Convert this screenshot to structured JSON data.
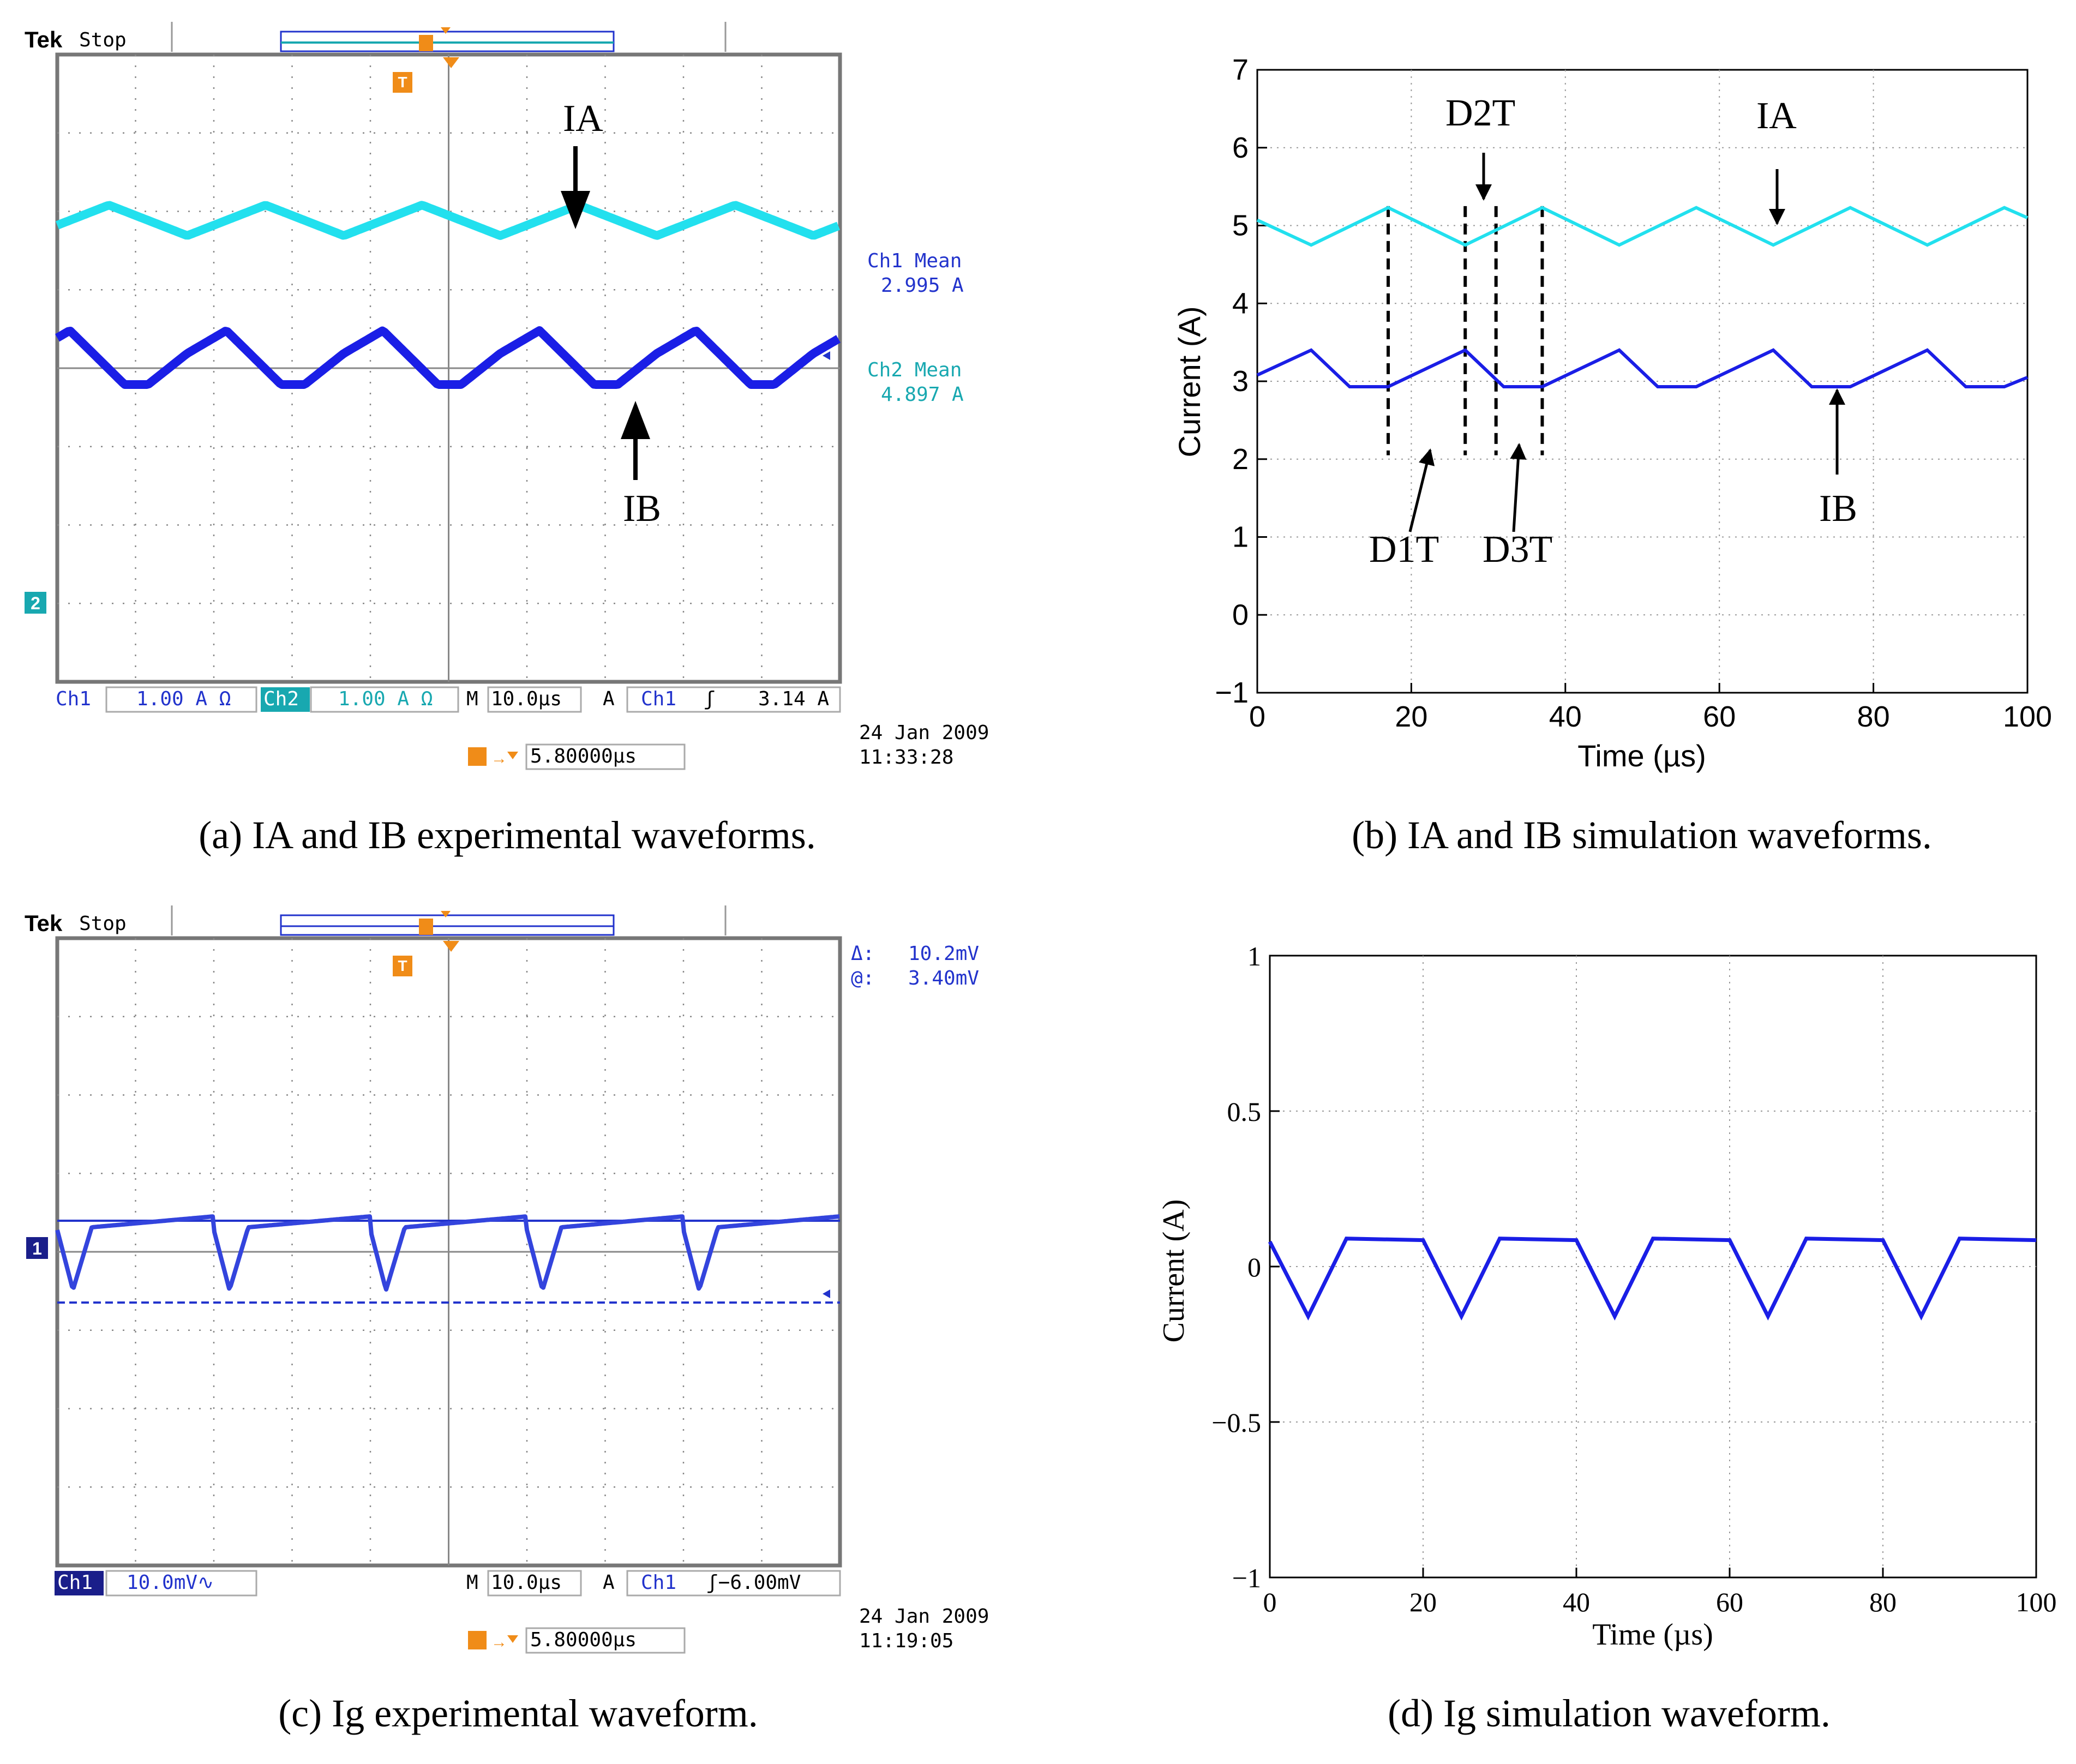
{
  "colors": {
    "cyan": "#22e0ee",
    "blue": "#1a1ee6",
    "scope_blue": "#2233cc",
    "scope_teal": "#18a8b0",
    "orange": "#f08c18",
    "grid": "#888888"
  },
  "panel_a": {
    "brand": "Tek",
    "status": "Stop",
    "ch1_mean_title": "Ch1 Mean",
    "ch1_mean_value": "2.995 A",
    "ch2_mean_title": "Ch2 Mean",
    "ch2_mean_value": "4.897 A",
    "label_ia": "IA",
    "label_ib": "IB",
    "ch1_name": "Ch1",
    "ch1_scale": "1.00 A Ω",
    "ch2_name": "Ch2",
    "ch2_scale": "1.00 A Ω",
    "time_prefix": "M",
    "time_div": "10.0µs",
    "trig_prefix": "A",
    "trig_ch": "Ch1",
    "trig_slope": "ʃ",
    "trig_level": "3.14 A",
    "date": "24 Jan  2009",
    "time": "11:33:28",
    "trig_pos": "5.80000µs",
    "ch_marker": "2",
    "caption": "(a)  IA and IB experimental waveforms."
  },
  "panel_c": {
    "brand": "Tek",
    "status": "Stop",
    "delta_label": "Δ:",
    "delta_value": "10.2mV",
    "at_label": "@:",
    "at_value": "3.40mV",
    "ch1_name": "Ch1",
    "ch1_scale": "10.0mV∿",
    "time_prefix": "M",
    "time_div": "10.0µs",
    "trig_prefix": "A",
    "trig_ch": "Ch1",
    "trig_level": "ʃ−6.00mV",
    "date": "24 Jan  2009",
    "time": "11:19:05",
    "trig_pos": "5.80000µs",
    "ch_marker": "1",
    "caption": "(c)  Ig experimental waveform."
  },
  "chart_data": [
    {
      "id": "b",
      "type": "line",
      "title": "",
      "xlabel": "Time (µs)",
      "ylabel": "Current (A)",
      "xlim": [
        0,
        100
      ],
      "ylim": [
        -1,
        7
      ],
      "xticks": [
        0,
        20,
        40,
        60,
        80,
        100
      ],
      "yticks": [
        -1,
        0,
        1,
        2,
        3,
        4,
        5,
        6,
        7
      ],
      "grid": true,
      "series": [
        {
          "name": "IA",
          "color": "#22e0ee",
          "x": [
            0,
            7,
            17,
            27,
            37,
            47,
            57,
            67,
            77,
            87,
            97,
            100
          ],
          "y": [
            5.07,
            4.75,
            5.23,
            4.75,
            5.23,
            4.75,
            5.23,
            4.75,
            5.23,
            4.75,
            5.23,
            5.1
          ]
        },
        {
          "name": "IB",
          "color": "#1a1ee6",
          "x": [
            0,
            7,
            12,
            17,
            27,
            32,
            37,
            47,
            52,
            57,
            67,
            72,
            77,
            87,
            92,
            97,
            100
          ],
          "y": [
            3.08,
            3.4,
            2.93,
            2.93,
            3.4,
            2.93,
            2.93,
            3.4,
            2.93,
            2.93,
            3.4,
            2.93,
            2.93,
            3.4,
            2.93,
            2.93,
            3.05
          ]
        }
      ],
      "dashed_markers_x": [
        17,
        27,
        31,
        37
      ],
      "annotations": {
        "ia": "IA",
        "ib": "IB",
        "d1": "D1T",
        "d2": "D2T",
        "d3": "D3T"
      },
      "caption": "(b)  IA and IB simulation waveforms."
    },
    {
      "id": "d",
      "type": "line",
      "title": "",
      "xlabel": "Time (µs)",
      "ylabel": "Current (A)",
      "xlim": [
        0,
        100
      ],
      "ylim": [
        -1,
        1
      ],
      "xticks": [
        0,
        20,
        40,
        60,
        80,
        100
      ],
      "yticks": [
        -1,
        -0.5,
        0,
        0.5,
        1
      ],
      "ytick_labels": [
        "−1",
        "−0.5",
        "0",
        "0.5",
        "1"
      ],
      "grid": true,
      "series": [
        {
          "name": "Ig",
          "color": "#1a1ee6",
          "x": [
            0,
            5,
            10,
            20,
            25,
            30,
            40,
            45,
            50,
            60,
            65,
            70,
            80,
            85,
            90,
            100
          ],
          "y": [
            0.08,
            -0.16,
            0.09,
            0.085,
            -0.16,
            0.09,
            0.085,
            -0.16,
            0.09,
            0.085,
            -0.16,
            0.09,
            0.085,
            -0.16,
            0.09,
            0.085
          ]
        }
      ],
      "caption": "(d)  Ig simulation waveform."
    }
  ]
}
